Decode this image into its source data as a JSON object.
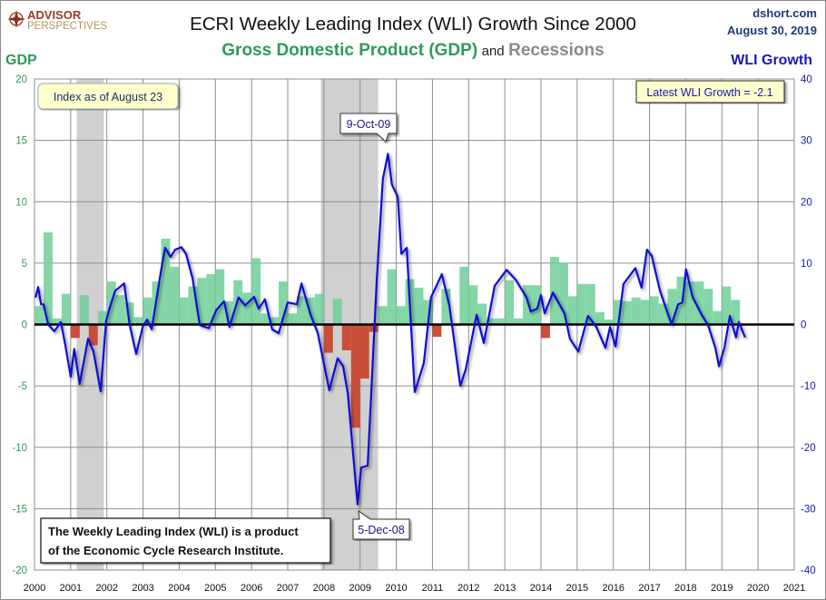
{
  "header": {
    "logo_top": "ADVISOR",
    "logo_bottom": "PERSPECTIVES",
    "title": "ECRI Weekly Leading Index (WLI) Growth Since 2000",
    "subtitle_gdp": "Gross Domestic Product (GDP)",
    "subtitle_and": "and",
    "subtitle_recessions": "Recessions",
    "site": "dshort.com",
    "date": "August 30, 2019"
  },
  "colors": {
    "gdp_positive": "#6fcf98",
    "gdp_negative": "#c9472e",
    "wli_line": "#1010d8",
    "recession": "#d0d0d0",
    "left_axis": "#2e9a5c",
    "right_axis": "#1a1ab0"
  },
  "annotations": {
    "index_as_of": "Index as of August 23",
    "latest": "Latest WLI Growth = -2.1",
    "peak_label": "9-Oct-09",
    "trough_label": "5-Dec-08",
    "source_line1": "The Weekly Leading Index (WLI) is a product",
    "source_line2": "of the Economic Cycle Research Institute."
  },
  "chart_data": {
    "type": "bar",
    "title": "ECRI Weekly Leading Index (WLI) Growth Since 2000",
    "ylabel_left": "GDP",
    "ylabel_right": "WLI Growth",
    "xlim": [
      2000,
      2021
    ],
    "ylim_left": [
      -20,
      20
    ],
    "ylim_right": [
      -40,
      40
    ],
    "left_ticks": [
      "20",
      "15",
      "10",
      "5",
      "0",
      "-5",
      "-10",
      "-15",
      "-20"
    ],
    "right_ticks": [
      "40",
      "30",
      "20",
      "10",
      "0",
      "-10",
      "-20",
      "-30",
      "-40"
    ],
    "x_ticks": [
      "2000",
      "2001",
      "2002",
      "2003",
      "2004",
      "2005",
      "2006",
      "2007",
      "2008",
      "2009",
      "2010",
      "2011",
      "2012",
      "2013",
      "2014",
      "2015",
      "2016",
      "2017",
      "2018",
      "2019",
      "2020",
      "2021"
    ],
    "grid": true,
    "recessions": [
      [
        "2001-03",
        "2001-11"
      ],
      [
        "2007-12",
        "2009-06"
      ]
    ],
    "series": [
      {
        "name": "GDP",
        "type": "bar",
        "axis": "left",
        "start_quarter": "2000-Q1",
        "values": [
          1.5,
          7.5,
          0.5,
          2.5,
          -1.1,
          2.4,
          -1.7,
          1.1,
          3.5,
          2.4,
          1.8,
          0.6,
          2.2,
          3.5,
          7.0,
          4.7,
          2.2,
          3.1,
          3.8,
          4.1,
          4.5,
          1.9,
          3.6,
          2.6,
          5.4,
          0.9,
          0.6,
          3.5,
          0.9,
          2.3,
          2.2,
          2.5,
          -2.3,
          2.1,
          -2.1,
          -8.4,
          -4.4,
          -0.6,
          1.5,
          4.5,
          1.5,
          3.7,
          3.0,
          2.0,
          -1.0,
          2.9,
          -0.1,
          4.7,
          3.2,
          1.7,
          0.5,
          0.5,
          3.6,
          0.5,
          3.2,
          3.2,
          -1.1,
          5.5,
          5.0,
          2.3,
          3.3,
          3.3,
          1.0,
          0.4,
          2.0,
          1.9,
          2.2,
          2.0,
          2.3,
          1.7,
          2.9,
          3.9,
          3.5,
          3.5,
          2.9,
          1.1,
          3.1,
          2.0
        ]
      },
      {
        "name": "WLI Growth",
        "type": "line",
        "axis": "right",
        "x": [
          2000.03,
          2000.1,
          2000.18,
          2000.25,
          2000.38,
          2000.55,
          2000.73,
          2000.85,
          2001.0,
          2001.1,
          2001.25,
          2001.48,
          2001.63,
          2001.83,
          2001.98,
          2002.11,
          2002.23,
          2002.48,
          2002.63,
          2002.81,
          2002.99,
          2003.11,
          2003.24,
          2003.49,
          2003.61,
          2003.76,
          2003.89,
          2004.06,
          2004.19,
          2004.37,
          2004.57,
          2004.82,
          2005.02,
          2005.24,
          2005.39,
          2005.64,
          2005.82,
          2006.07,
          2006.2,
          2006.37,
          2006.57,
          2006.75,
          2007.0,
          2007.25,
          2007.38,
          2007.63,
          2007.83,
          2008.03,
          2008.15,
          2008.38,
          2008.53,
          2008.66,
          2008.93,
          2009.03,
          2009.21,
          2009.46,
          2009.63,
          2009.77,
          2009.88,
          2010.04,
          2010.14,
          2010.29,
          2010.51,
          2010.76,
          2010.96,
          2011.26,
          2011.47,
          2011.77,
          2011.92,
          2012.22,
          2012.42,
          2012.72,
          2013.05,
          2013.3,
          2013.6,
          2013.72,
          2013.9,
          2014.0,
          2014.1,
          2014.33,
          2014.65,
          2014.8,
          2015.03,
          2015.3,
          2015.53,
          2015.78,
          2015.91,
          2016.06,
          2016.28,
          2016.61,
          2016.78,
          2016.93,
          2017.06,
          2017.29,
          2017.44,
          2017.61,
          2017.79,
          2017.91,
          2018.01,
          2018.19,
          2018.44,
          2018.62,
          2018.82,
          2018.92,
          2019.07,
          2019.22,
          2019.39,
          2019.47,
          2019.64
        ],
        "y": [
          4.4,
          6.1,
          3.3,
          3.3,
          0.0,
          -1.1,
          0.4,
          -3.3,
          -8.5,
          -4.0,
          -9.7,
          -2.3,
          -4.4,
          -10.9,
          0.6,
          3.3,
          5.5,
          6.7,
          0.0,
          -4.8,
          -0.4,
          0.8,
          -0.8,
          8.5,
          12.5,
          11.0,
          12.2,
          12.6,
          11.5,
          7.5,
          -0.1,
          -0.6,
          2.3,
          3.8,
          -0.4,
          4.4,
          3.1,
          4.5,
          2.6,
          4.1,
          -0.8,
          -1.4,
          3.6,
          3.3,
          6.7,
          1.6,
          -1.4,
          -7.3,
          -10.7,
          -5.5,
          -6.8,
          -11.2,
          -29.3,
          -23.3,
          -23.0,
          7.0,
          23.7,
          27.8,
          22.8,
          20.8,
          11.5,
          12.5,
          -11.0,
          -6.3,
          4.4,
          8.2,
          3.0,
          -10.0,
          -7.3,
          1.6,
          -3.0,
          6.3,
          8.9,
          7.3,
          4.4,
          2.1,
          2.6,
          4.8,
          1.8,
          5.2,
          1.8,
          -2.3,
          -4.4,
          1.4,
          -0.4,
          -3.8,
          -0.4,
          -3.6,
          6.6,
          9.2,
          6.0,
          12.2,
          11.2,
          5.5,
          2.9,
          0.0,
          3.3,
          3.6,
          9.0,
          4.5,
          1.6,
          -0.1,
          -3.8,
          -6.8,
          -3.8,
          1.4,
          -2.1,
          0.4,
          -2.1
        ]
      }
    ]
  }
}
